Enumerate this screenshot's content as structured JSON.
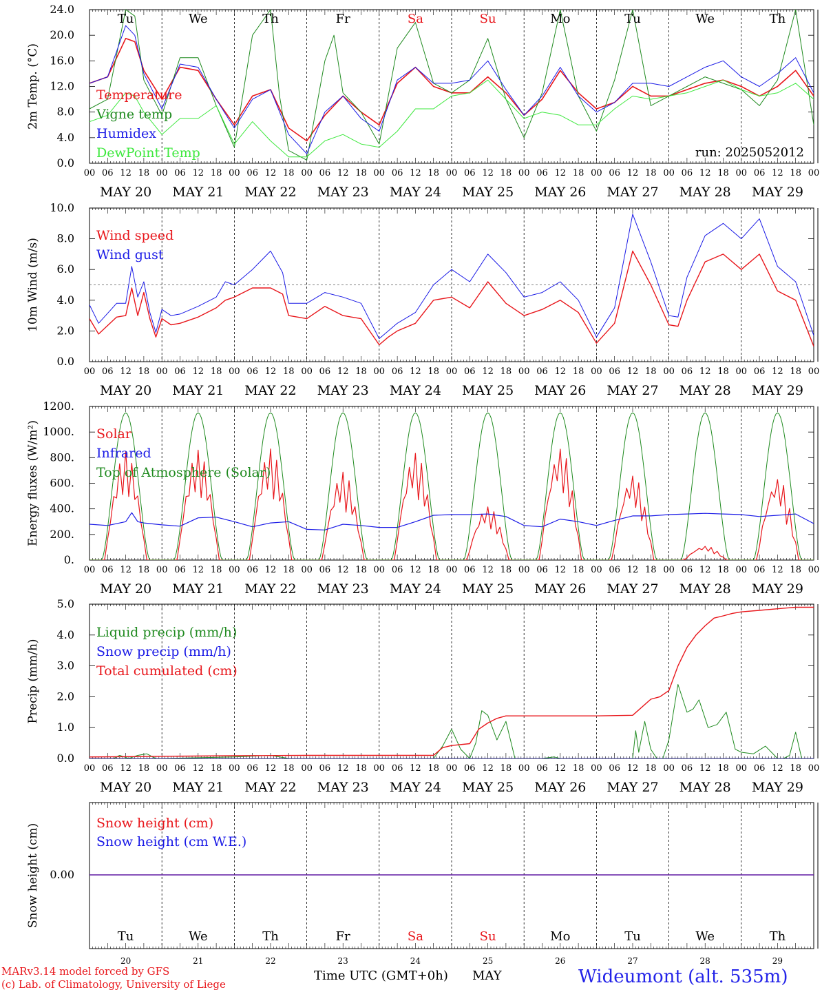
{
  "run_label": "run: 2025052012",
  "station": "Wideumont (alt. 535m)",
  "credits": [
    "MARv3.14 model forced by GFS",
    "(c) Lab. of Climatology, University of Liege"
  ],
  "x_axis_title": "Time UTC (GMT+0h)",
  "month_label": "MAY",
  "hour_ticks": [
    "00",
    "06",
    "12",
    "18"
  ],
  "days": [
    {
      "label": "MAY 20",
      "dow": "Tu",
      "num": "20",
      "weekend": false
    },
    {
      "label": "MAY 21",
      "dow": "We",
      "num": "21",
      "weekend": false
    },
    {
      "label": "MAY 22",
      "dow": "Th",
      "num": "22",
      "weekend": false
    },
    {
      "label": "MAY 23",
      "dow": "Fr",
      "num": "23",
      "weekend": false
    },
    {
      "label": "MAY 24",
      "dow": "Sa",
      "num": "24",
      "weekend": true
    },
    {
      "label": "MAY 25",
      "dow": "Su",
      "num": "25",
      "weekend": true
    },
    {
      "label": "MAY 26",
      "dow": "Mo",
      "num": "26",
      "weekend": false
    },
    {
      "label": "MAY 27",
      "dow": "Tu",
      "num": "27",
      "weekend": false
    },
    {
      "label": "MAY 28",
      "dow": "We",
      "num": "28",
      "weekend": false
    },
    {
      "label": "MAY 29",
      "dow": "Th",
      "num": "29",
      "weekend": false
    }
  ],
  "colors": {
    "red": "#e8161b",
    "green": "#1f8a1f",
    "blue": "#1a1ae6",
    "lightgreen": "#3ee83e",
    "axis": "#000000",
    "station": "#2323e8"
  },
  "chart_data": [
    {
      "id": "temperature",
      "type": "line",
      "ylabel": "2m Temp. (°C)",
      "ylim": [
        0,
        24
      ],
      "yticks": [
        "0.0",
        "4.0",
        "8.0",
        "12.0",
        "16.0",
        "20.0",
        "24.0"
      ],
      "ytick_values": [
        0,
        4,
        8,
        12,
        16,
        20,
        24
      ],
      "show_dow": true,
      "x_unit": "hours from MAY 20 00 UTC",
      "series": [
        {
          "name": "Temperature",
          "color": "#e8161b",
          "width": 1.6,
          "x": [
            0,
            6,
            12,
            15,
            18,
            24,
            30,
            36,
            42,
            48,
            54,
            60,
            66,
            72,
            78,
            84,
            90,
            96,
            102,
            108,
            114,
            120,
            126,
            132,
            138,
            144,
            150,
            156,
            162,
            168,
            174,
            180,
            186,
            192,
            198,
            204,
            210,
            216,
            222,
            228,
            234,
            240
          ],
          "y": [
            12.5,
            13.5,
            19.5,
            19.0,
            14.5,
            10.0,
            15.0,
            14.5,
            10.0,
            6.0,
            10.5,
            11.5,
            5.5,
            3.5,
            7.5,
            10.5,
            8.0,
            6.0,
            12.5,
            15.0,
            12.0,
            11.0,
            11.0,
            13.5,
            11.0,
            7.5,
            10.0,
            14.5,
            11.0,
            8.5,
            9.5,
            12.0,
            10.5,
            10.5,
            11.5,
            12.5,
            13.0,
            12.0,
            10.5,
            12.0,
            14.5,
            10.5
          ]
        },
        {
          "name": "Vigne temp",
          "color": "#1f8a1f",
          "width": 1.0,
          "x": [
            0,
            6,
            12,
            15,
            18,
            24,
            30,
            36,
            42,
            48,
            54,
            60,
            63,
            66,
            72,
            78,
            81,
            84,
            90,
            96,
            102,
            108,
            114,
            120,
            126,
            132,
            138,
            144,
            150,
            156,
            162,
            168,
            174,
            180,
            186,
            192,
            198,
            204,
            210,
            216,
            222,
            228,
            234,
            240
          ],
          "y": [
            8.5,
            10.0,
            24.0,
            23.0,
            13.0,
            7.5,
            16.5,
            16.5,
            9.0,
            2.5,
            20.0,
            24.0,
            10.5,
            2.0,
            0.5,
            16.0,
            20.0,
            11.0,
            8.0,
            3.0,
            18.0,
            22.0,
            12.5,
            11.0,
            13.0,
            19.5,
            10.0,
            4.0,
            11.0,
            24.0,
            10.5,
            5.0,
            13.0,
            24.0,
            9.0,
            10.5,
            12.0,
            13.5,
            12.5,
            11.5,
            9.0,
            13.0,
            24.0,
            6.0
          ]
        },
        {
          "name": "Humidex",
          "color": "#1a1ae6",
          "width": 1.0,
          "x": [
            0,
            6,
            12,
            15,
            18,
            24,
            30,
            36,
            42,
            48,
            54,
            60,
            66,
            72,
            78,
            84,
            90,
            96,
            102,
            108,
            114,
            120,
            126,
            132,
            138,
            144,
            150,
            156,
            162,
            168,
            174,
            180,
            186,
            192,
            198,
            204,
            210,
            216,
            222,
            228,
            234,
            240
          ],
          "y": [
            12.5,
            13.5,
            21.5,
            20.0,
            14.0,
            8.5,
            15.5,
            15.0,
            10.0,
            5.5,
            10.0,
            11.5,
            4.5,
            1.5,
            8.0,
            10.5,
            7.0,
            5.0,
            13.0,
            15.0,
            12.5,
            12.5,
            13.0,
            16.0,
            11.5,
            7.5,
            10.5,
            15.0,
            10.5,
            8.0,
            9.5,
            12.5,
            12.5,
            12.0,
            13.5,
            15.0,
            16.0,
            13.5,
            12.0,
            14.0,
            16.5,
            11.0
          ]
        },
        {
          "name": "DewPoint Temp",
          "color": "#3ee83e",
          "width": 1.0,
          "x": [
            0,
            6,
            12,
            15,
            18,
            24,
            30,
            36,
            42,
            48,
            54,
            60,
            66,
            72,
            78,
            84,
            90,
            96,
            102,
            108,
            114,
            120,
            126,
            132,
            138,
            144,
            150,
            156,
            162,
            168,
            174,
            180,
            186,
            192,
            198,
            204,
            210,
            216,
            222,
            228,
            234,
            240
          ],
          "y": [
            6.5,
            7.5,
            11.0,
            10.5,
            8.0,
            4.5,
            7.0,
            7.0,
            9.0,
            3.0,
            6.5,
            3.5,
            1.0,
            1.0,
            3.5,
            4.5,
            3.0,
            2.5,
            5.0,
            8.5,
            8.5,
            10.5,
            11.0,
            13.0,
            10.0,
            7.0,
            8.0,
            7.5,
            6.0,
            6.0,
            8.5,
            10.5,
            10.0,
            10.5,
            11.0,
            12.0,
            13.0,
            11.5,
            10.5,
            11.0,
            12.5,
            10.0
          ]
        }
      ]
    },
    {
      "id": "wind",
      "type": "line",
      "ylabel": "10m Wind (m/s)",
      "ylim": [
        0,
        10
      ],
      "yticks": [
        "0.0",
        "2.0",
        "4.0",
        "6.0",
        "8.0",
        "10.0"
      ],
      "ytick_values": [
        0,
        2,
        4,
        6,
        8,
        10
      ],
      "hline": 5,
      "x_unit": "hours from MAY 20 00 UTC",
      "series": [
        {
          "name": "Wind speed",
          "color": "#e8161b",
          "width": 1.4,
          "x": [
            0,
            3,
            9,
            12,
            14,
            16,
            18,
            20,
            22,
            24,
            27,
            30,
            36,
            42,
            45,
            48,
            54,
            60,
            64,
            66,
            72,
            78,
            84,
            90,
            96,
            99,
            102,
            108,
            114,
            120,
            126,
            132,
            138,
            144,
            150,
            156,
            162,
            168,
            174,
            180,
            186,
            192,
            195,
            198,
            204,
            210,
            216,
            222,
            228,
            234,
            240
          ],
          "y": [
            2.8,
            1.8,
            2.9,
            3.0,
            4.8,
            3.0,
            4.5,
            2.8,
            1.6,
            2.8,
            2.4,
            2.5,
            2.9,
            3.5,
            4.0,
            4.2,
            4.8,
            4.8,
            4.4,
            3.0,
            2.8,
            3.6,
            3.0,
            2.8,
            1.1,
            1.6,
            2.0,
            2.5,
            4.0,
            4.2,
            3.5,
            5.2,
            3.8,
            3.0,
            3.4,
            4.0,
            3.2,
            1.2,
            2.5,
            7.2,
            5.0,
            2.4,
            2.3,
            4.0,
            6.5,
            7.0,
            6.0,
            7.0,
            4.6,
            4.0,
            1.0
          ]
        },
        {
          "name": "Wind gust",
          "color": "#1a1ae6",
          "width": 1.0,
          "x": [
            0,
            3,
            9,
            12,
            14,
            16,
            18,
            20,
            22,
            24,
            27,
            30,
            36,
            42,
            45,
            48,
            54,
            60,
            64,
            66,
            72,
            78,
            84,
            90,
            96,
            99,
            102,
            108,
            114,
            120,
            126,
            132,
            138,
            144,
            150,
            156,
            162,
            168,
            174,
            180,
            186,
            192,
            195,
            198,
            204,
            210,
            216,
            222,
            228,
            234,
            240
          ],
          "y": [
            3.7,
            2.5,
            3.8,
            3.8,
            6.2,
            4.2,
            5.2,
            3.2,
            1.9,
            3.4,
            3.0,
            3.1,
            3.6,
            4.2,
            5.2,
            5.0,
            6.0,
            7.2,
            5.8,
            3.8,
            3.8,
            4.5,
            4.2,
            3.8,
            1.5,
            2.0,
            2.5,
            3.2,
            5.0,
            6.0,
            5.2,
            7.0,
            5.8,
            4.2,
            4.5,
            5.2,
            4.0,
            1.6,
            3.5,
            9.6,
            6.5,
            3.0,
            2.9,
            5.5,
            8.2,
            9.0,
            8.0,
            9.3,
            6.2,
            5.2,
            1.7
          ]
        }
      ]
    },
    {
      "id": "energy",
      "type": "line",
      "ylabel": "Energy fluxes (W/m²)",
      "ylim": [
        0,
        1200
      ],
      "yticks": [
        "0.",
        "200.",
        "400.",
        "600.",
        "800.",
        "1000.",
        "1200."
      ],
      "ytick_values": [
        0,
        200,
        400,
        600,
        800,
        1000,
        1200
      ],
      "x_unit": "hours from MAY 20 00 UTC",
      "solar_daily_peaks": [
        850,
        860,
        870,
        690,
        840,
        420,
        880,
        670,
        110,
        650
      ],
      "series": [
        {
          "name": "Solar",
          "color": "#e8161b",
          "width": 1.2
        },
        {
          "name": "Infrared",
          "color": "#1a1ae6",
          "width": 1.2,
          "x": [
            0,
            6,
            12,
            14,
            16,
            18,
            24,
            30,
            36,
            42,
            48,
            54,
            60,
            66,
            72,
            78,
            84,
            90,
            96,
            102,
            108,
            114,
            120,
            126,
            132,
            138,
            144,
            150,
            156,
            162,
            168,
            174,
            180,
            186,
            192,
            198,
            204,
            210,
            216,
            222,
            228,
            234,
            240
          ],
          "y": [
            280,
            270,
            300,
            370,
            300,
            290,
            275,
            265,
            330,
            335,
            300,
            260,
            290,
            300,
            240,
            235,
            280,
            270,
            255,
            255,
            300,
            350,
            355,
            355,
            360,
            340,
            270,
            260,
            320,
            300,
            270,
            310,
            345,
            345,
            355,
            360,
            365,
            360,
            355,
            340,
            350,
            360,
            285
          ]
        },
        {
          "name": "Top of Atmosphere (Solar)",
          "color": "#1f8a1f",
          "width": 1.0,
          "peak": 1150,
          "rise_hour": 4,
          "set_hour": 20
        }
      ]
    },
    {
      "id": "precip",
      "type": "line",
      "ylabel": "Precip (mm/h)",
      "ylim": [
        0,
        5
      ],
      "yticks": [
        "0.0",
        "1.0",
        "2.0",
        "3.0",
        "4.0",
        "5.0"
      ],
      "ytick_values": [
        0,
        1,
        2,
        3,
        4,
        5
      ],
      "x_unit": "hours from MAY 20 00 UTC",
      "series": [
        {
          "name": "Liquid precip (mm/h)",
          "color": "#1f8a1f",
          "width": 1.0,
          "x": [
            0,
            8,
            10,
            13,
            16,
            19,
            22,
            24,
            48,
            60,
            66,
            72,
            108,
            114,
            117,
            120,
            123,
            126,
            128,
            130,
            132,
            135,
            138,
            141,
            144,
            150,
            154,
            156,
            168,
            180,
            181,
            182,
            184,
            186,
            188,
            190,
            192,
            195,
            198,
            200,
            202,
            205,
            208,
            211,
            214,
            216,
            220,
            224,
            228,
            230,
            232,
            234,
            236,
            240
          ],
          "y": [
            0,
            0,
            0.1,
            0,
            0.1,
            0.15,
            0,
            0,
            0.05,
            0.1,
            0,
            0,
            0,
            0,
            0.4,
            0.95,
            0.3,
            0,
            0.5,
            1.55,
            1.4,
            0.6,
            1.2,
            0,
            0,
            0,
            0.05,
            0,
            0,
            0,
            0.9,
            0.2,
            1.2,
            0.3,
            0,
            0,
            0.6,
            2.4,
            1.5,
            1.6,
            1.9,
            1.0,
            1.1,
            1.5,
            0.3,
            0.2,
            0.15,
            0.4,
            0,
            0,
            0.1,
            0.85,
            0,
            0
          ]
        },
        {
          "name": "Snow precip (mm/h)",
          "color": "#1a1ae6",
          "width": 1.0,
          "x": [
            0,
            240
          ],
          "y": [
            0,
            0
          ]
        },
        {
          "name": "Total cumulated (cm)",
          "color": "#e8161b",
          "width": 1.4,
          "x": [
            0,
            24,
            48,
            72,
            96,
            114,
            117,
            120,
            126,
            129,
            132,
            135,
            138,
            144,
            168,
            180,
            186,
            189,
            192,
            195,
            198,
            201,
            204,
            207,
            210,
            213,
            216,
            222,
            228,
            234,
            240
          ],
          "y": [
            0.05,
            0.07,
            0.09,
            0.1,
            0.1,
            0.1,
            0.35,
            0.42,
            0.48,
            0.95,
            1.15,
            1.3,
            1.38,
            1.38,
            1.38,
            1.4,
            1.92,
            2.0,
            2.2,
            3.0,
            3.6,
            4.0,
            4.3,
            4.55,
            4.62,
            4.7,
            4.75,
            4.8,
            4.85,
            4.9,
            4.9
          ]
        }
      ]
    },
    {
      "id": "snow",
      "type": "line",
      "ylabel": "Snow height (cm)",
      "yticks": [
        "0.00"
      ],
      "show_dow": true,
      "x_unit": "hours from MAY 20 00 UTC",
      "series": [
        {
          "name": "Snow height (cm)",
          "color": "#e8161b",
          "width": 1.4,
          "x": [
            0,
            240
          ],
          "y": [
            0,
            0
          ]
        },
        {
          "name": "Snow height (cm W.E.)",
          "color": "#1a1ae6",
          "width": 1.0,
          "x": [
            0,
            240
          ],
          "y": [
            0,
            0
          ]
        }
      ]
    }
  ]
}
